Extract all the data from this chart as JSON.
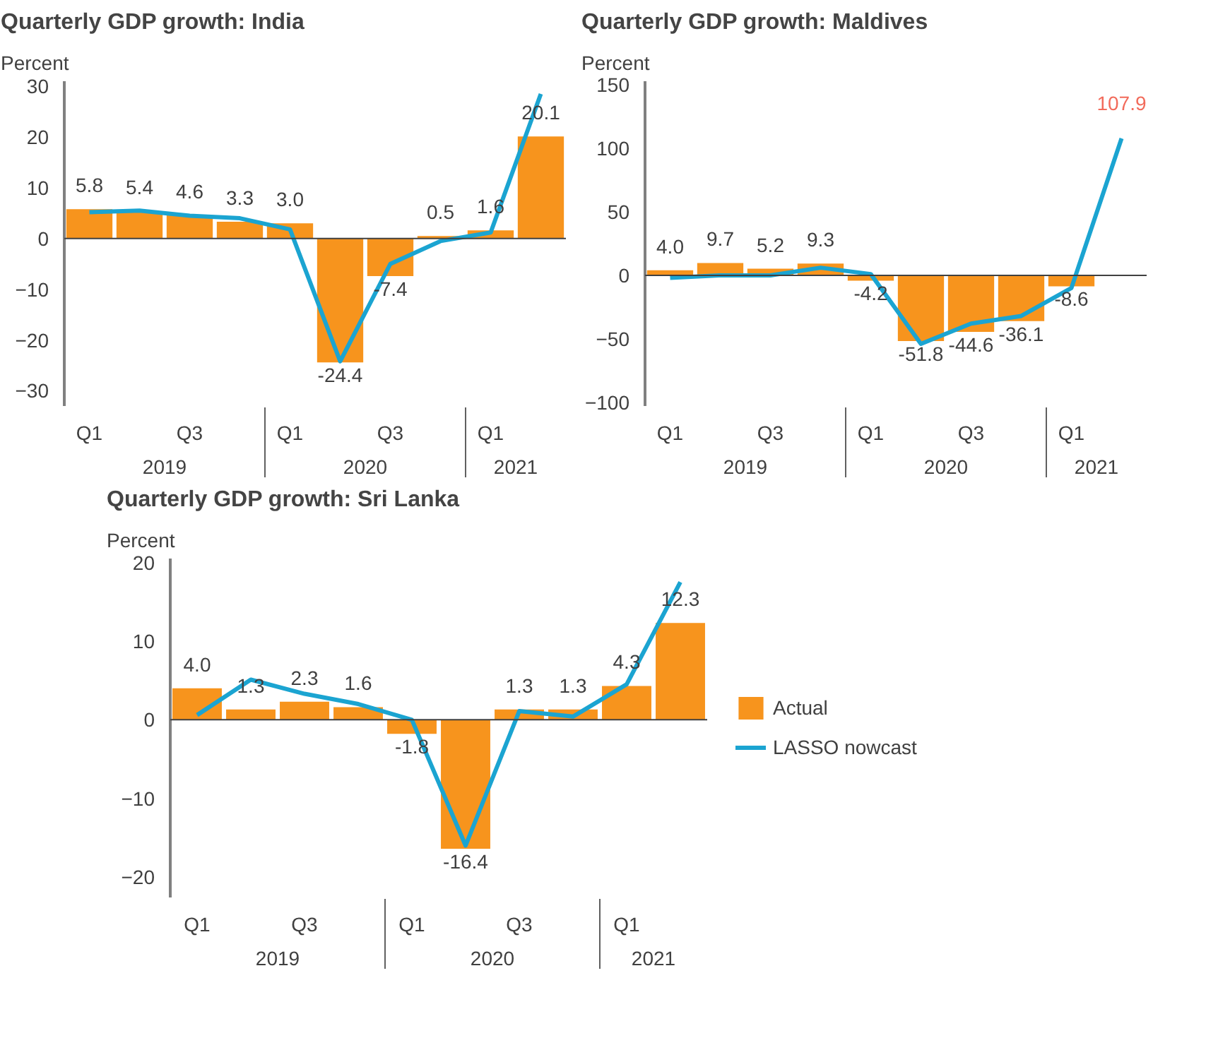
{
  "chart_data": [
    {
      "type": "bar",
      "title": "Quarterly GDP growth: India",
      "ylabel": "Percent",
      "categories": [
        "Q1",
        null,
        "Q3",
        null,
        "Q1",
        null,
        "Q3",
        null,
        "Q1",
        null
      ],
      "annotations": [
        "2019",
        "2020",
        "2021"
      ],
      "ylim": [
        -33,
        31
      ],
      "yticks": [
        -30,
        -20,
        -10,
        0,
        10,
        20,
        30
      ],
      "series": [
        {
          "color": "#f7941d",
          "values": [
            5.8,
            5.4,
            4.6,
            3.3,
            3.0,
            -24.4,
            -7.4,
            0.5,
            1.6,
            20.1
          ],
          "value_labels": [
            "5.8",
            "5.4",
            "4.6",
            "3.3",
            "3.0",
            "-24.4",
            "-7.4",
            "0.5",
            "1.6",
            "20.1"
          ]
        },
        {
          "type": "line",
          "color": "#1ba4d1",
          "values": [
            5.2,
            5.5,
            4.5,
            4.0,
            1.8,
            -24.2,
            -5.0,
            -0.5,
            1.2,
            28.5
          ]
        }
      ]
    },
    {
      "type": "bar",
      "title": "Quarterly GDP growth: Maldives",
      "ylabel": "Percent",
      "categories": [
        "Q1",
        null,
        "Q3",
        null,
        "Q1",
        null,
        "Q3",
        null,
        "Q1",
        null
      ],
      "annotations": [
        "2019",
        "2020",
        "2021"
      ],
      "ylim": [
        -103,
        153
      ],
      "yticks": [
        -100,
        -50,
        0,
        50,
        100,
        150
      ],
      "series": [
        {
          "color": "#f7941d",
          "values": [
            4.0,
            9.7,
            5.2,
            9.3,
            -4.2,
            -51.8,
            -44.6,
            -36.1,
            -8.6,
            null
          ],
          "value_labels": [
            "4.0",
            "9.7",
            "5.2",
            "9.3",
            "-4.2",
            "-51.8",
            "-44.6",
            "-36.1",
            "-8.6",
            null
          ]
        },
        {
          "type": "line",
          "color": "#1ba4d1",
          "values": [
            -2,
            0,
            0,
            6,
            1,
            -54,
            -38,
            -32,
            -10,
            107.9
          ],
          "value_labels": [
            null,
            null,
            null,
            null,
            null,
            null,
            null,
            null,
            null,
            "107.9"
          ]
        }
      ]
    },
    {
      "type": "bar",
      "title": "Quarterly GDP growth: Sri Lanka",
      "ylabel": "Percent",
      "categories": [
        "Q1",
        null,
        "Q3",
        null,
        "Q1",
        null,
        "Q3",
        null,
        "Q1",
        null
      ],
      "annotations": [
        "2019",
        "2020",
        "2021"
      ],
      "ylim": [
        -22.6,
        20.5
      ],
      "yticks": [
        -20,
        -10,
        0,
        10,
        20
      ],
      "legend": "right",
      "series": [
        {
          "name": "Actual",
          "color": "#f7941d",
          "values": [
            4.0,
            1.3,
            2.3,
            1.6,
            -1.8,
            -16.4,
            1.3,
            1.3,
            4.3,
            12.3
          ],
          "value_labels": [
            "4.0",
            "1.3",
            "2.3",
            "1.6",
            "-1.8",
            "-16.4",
            "1.3",
            "1.3",
            "4.3",
            "12.3"
          ]
        },
        {
          "type": "line",
          "name": "LASSO nowcast",
          "color": "#1ba4d1",
          "values": [
            0.6,
            5.1,
            3.3,
            2.0,
            0,
            -16,
            1.1,
            0.4,
            4.5,
            17.5
          ]
        }
      ]
    }
  ]
}
